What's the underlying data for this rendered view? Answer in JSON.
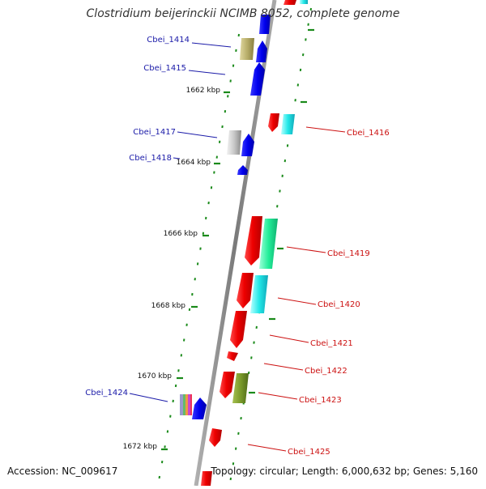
{
  "header": {
    "title": "Clostridium beijerinckii NCIMB 8052, complete genome"
  },
  "footer": {
    "accession": "Accession: NC_009617",
    "topology": "Topology: circular; Length: 6,000,632 bp; Genes: 5,160"
  },
  "colors": {
    "backbone": "#8c8c8c",
    "tick": "#1a8a1a",
    "forward_label": "#1a1aa8",
    "reverse_label": "#cc1111"
  },
  "ruler": [
    {
      "label": "1662 kbp"
    },
    {
      "label": "1664 kbp"
    },
    {
      "label": "1666 kbp"
    },
    {
      "label": "1668 kbp"
    },
    {
      "label": "1670 kbp"
    },
    {
      "label": "1672 kbp"
    }
  ],
  "forward_genes": [
    {
      "label": "Cbei_1414"
    },
    {
      "label": "Cbei_1415"
    },
    {
      "label": "Cbei_1417"
    },
    {
      "label": "Cbei_1418"
    },
    {
      "label": "Cbei_1424"
    }
  ],
  "reverse_genes": [
    {
      "label": "Cbei_1416"
    },
    {
      "label": "Cbei_1419"
    },
    {
      "label": "Cbei_1420"
    },
    {
      "label": "Cbei_1421"
    },
    {
      "label": "Cbei_1422"
    },
    {
      "label": "Cbei_1423"
    },
    {
      "label": "Cbei_1425"
    }
  ]
}
